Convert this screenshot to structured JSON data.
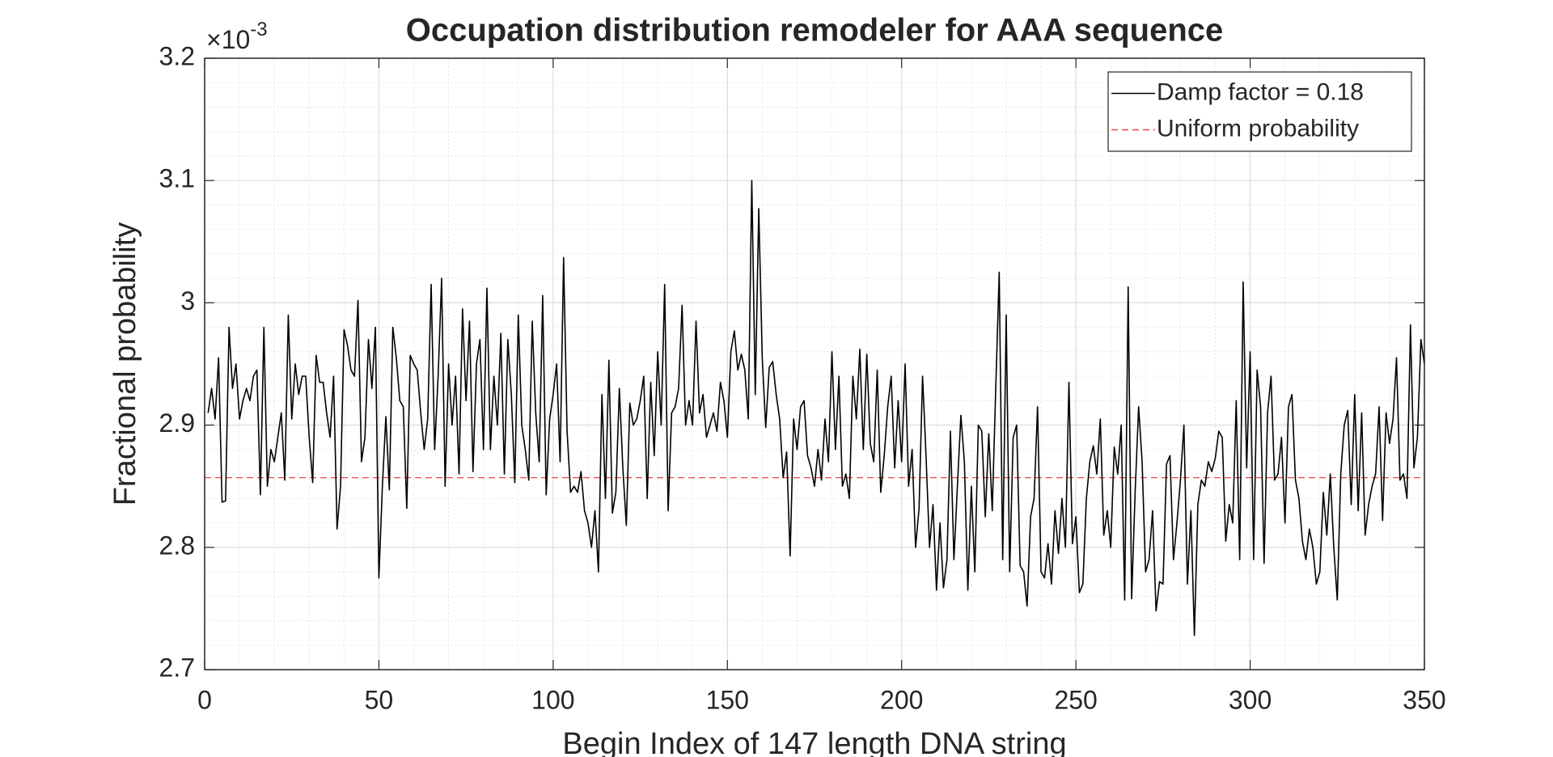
{
  "chart_data": {
    "type": "line",
    "title": "Occupation distribution remodeler for AAA sequence",
    "xlabel": "Begin Index of 147 length DNA string",
    "ylabel": "Fractional probability",
    "y_scale_base": "×10",
    "y_scale_power": "-3",
    "xlim": [
      0,
      350
    ],
    "xticks": [
      0,
      50,
      100,
      150,
      200,
      250,
      300,
      350
    ],
    "ylim": [
      2.7,
      3.2
    ],
    "yticks": [
      2.7,
      2.8,
      2.9,
      3,
      3.1,
      3.2
    ],
    "grid": true,
    "minor_grid": true,
    "legend": "northeast",
    "x": [
      1,
      2,
      3,
      4,
      5,
      6,
      7,
      8,
      9,
      10,
      11,
      12,
      13,
      14,
      15,
      16,
      17,
      18,
      19,
      20,
      21,
      22,
      23,
      24,
      25,
      26,
      27,
      28,
      29,
      30,
      31,
      32,
      33,
      34,
      35,
      36,
      37,
      38,
      39,
      40,
      41,
      42,
      43,
      44,
      45,
      46,
      47,
      48,
      49,
      50,
      51,
      52,
      53,
      54,
      55,
      56,
      57,
      58,
      59,
      60,
      61,
      62,
      63,
      64,
      65,
      66,
      67,
      68,
      69,
      70,
      71,
      72,
      73,
      74,
      75,
      76,
      77,
      78,
      79,
      80,
      81,
      82,
      83,
      84,
      85,
      86,
      87,
      88,
      89,
      90,
      91,
      92,
      93,
      94,
      95,
      96,
      97,
      98,
      99,
      100,
      101,
      102,
      103,
      104,
      105,
      106,
      107,
      108,
      109,
      110,
      111,
      112,
      113,
      114,
      115,
      116,
      117,
      118,
      119,
      120,
      121,
      122,
      123,
      124,
      125,
      126,
      127,
      128,
      129,
      130,
      131,
      132,
      133,
      134,
      135,
      136,
      137,
      138,
      139,
      140,
      141,
      142,
      143,
      144,
      145,
      146,
      147,
      148,
      149,
      150,
      151,
      152,
      153,
      154,
      155,
      156,
      157,
      158,
      159,
      160,
      161,
      162,
      163,
      164,
      165,
      166,
      167,
      168,
      169,
      170,
      171,
      172,
      173,
      174,
      175,
      176,
      177,
      178,
      179,
      180,
      181,
      182,
      183,
      184,
      185,
      186,
      187,
      188,
      189,
      190,
      191,
      192,
      193,
      194,
      195,
      196,
      197,
      198,
      199,
      200,
      201,
      202,
      203,
      204,
      205,
      206,
      207,
      208,
      209,
      210,
      211,
      212,
      213,
      214,
      215,
      216,
      217,
      218,
      219,
      220,
      221,
      222,
      223,
      224,
      225,
      226,
      227,
      228,
      229,
      230,
      231,
      232,
      233,
      234,
      235,
      236,
      237,
      238,
      239,
      240,
      241,
      242,
      243,
      244,
      245,
      246,
      247,
      248,
      249,
      250,
      251,
      252,
      253,
      254,
      255,
      256,
      257,
      258,
      259,
      260,
      261,
      262,
      263,
      264,
      265,
      266,
      267,
      268,
      269,
      270,
      271,
      272,
      273,
      274,
      275,
      276,
      277,
      278,
      279,
      280,
      281,
      282,
      283,
      284,
      285,
      286,
      287,
      288,
      289,
      290,
      291,
      292,
      293,
      294,
      295,
      296,
      297,
      298,
      299,
      300,
      301,
      302,
      303,
      304,
      305,
      306,
      307,
      308,
      309,
      310,
      311,
      312,
      313,
      314,
      315,
      316,
      317,
      318,
      319,
      320,
      321,
      322,
      323,
      324,
      325,
      326,
      327,
      328,
      329,
      330,
      331,
      332,
      333,
      334,
      335,
      336,
      337,
      338,
      339,
      340,
      341,
      342,
      343,
      344,
      345,
      346,
      347,
      348,
      349,
      350
    ],
    "series": [
      {
        "name": "Damp factor = 0.18",
        "color": "#000000",
        "values": [
          2.91,
          2.93,
          2.905,
          2.955,
          2.837,
          2.838,
          2.98,
          2.93,
          2.95,
          2.905,
          2.92,
          2.93,
          2.92,
          2.94,
          2.945,
          2.843,
          2.98,
          2.85,
          2.88,
          2.87,
          2.89,
          2.91,
          2.855,
          2.99,
          2.905,
          2.95,
          2.925,
          2.94,
          2.94,
          2.89,
          2.853,
          2.957,
          2.935,
          2.935,
          2.91,
          2.89,
          2.94,
          2.815,
          2.85,
          2.978,
          2.965,
          2.945,
          2.94,
          3.002,
          2.87,
          2.89,
          2.97,
          2.93,
          2.98,
          2.775,
          2.85,
          2.907,
          2.847,
          2.98,
          2.955,
          2.92,
          2.915,
          2.832,
          2.957,
          2.95,
          2.945,
          2.91,
          2.88,
          2.905,
          3.015,
          2.88,
          2.94,
          3.02,
          2.85,
          2.95,
          2.9,
          2.94,
          2.86,
          2.995,
          2.92,
          2.985,
          2.862,
          2.95,
          2.97,
          2.88,
          3.012,
          2.88,
          2.94,
          2.9,
          2.975,
          2.86,
          2.97,
          2.925,
          2.853,
          2.99,
          2.9,
          2.88,
          2.855,
          2.985,
          2.91,
          2.87,
          3.006,
          2.843,
          2.905,
          2.925,
          2.95,
          2.87,
          3.037,
          2.895,
          2.845,
          2.85,
          2.845,
          2.862,
          2.83,
          2.82,
          2.8,
          2.83,
          2.78,
          2.925,
          2.84,
          2.953,
          2.828,
          2.845,
          2.93,
          2.865,
          2.818,
          2.918,
          2.9,
          2.905,
          2.92,
          2.94,
          2.84,
          2.935,
          2.875,
          2.96,
          2.9,
          3.015,
          2.83,
          2.91,
          2.915,
          2.93,
          2.998,
          2.9,
          2.92,
          2.9,
          2.985,
          2.91,
          2.925,
          2.89,
          2.9,
          2.91,
          2.895,
          2.935,
          2.92,
          2.89,
          2.96,
          2.977,
          2.945,
          2.958,
          2.945,
          2.905,
          3.1,
          2.925,
          3.077,
          2.955,
          2.898,
          2.947,
          2.952,
          2.925,
          2.905,
          2.857,
          2.878,
          2.793,
          2.905,
          2.88,
          2.915,
          2.92,
          2.875,
          2.865,
          2.85,
          2.88,
          2.855,
          2.905,
          2.87,
          2.96,
          2.88,
          2.94,
          2.85,
          2.86,
          2.84,
          2.94,
          2.905,
          2.962,
          2.88,
          2.958,
          2.885,
          2.87,
          2.945,
          2.845,
          2.875,
          2.915,
          2.94,
          2.865,
          2.92,
          2.87,
          2.95,
          2.85,
          2.88,
          2.8,
          2.832,
          2.94,
          2.875,
          2.8,
          2.835,
          2.765,
          2.82,
          2.767,
          2.79,
          2.895,
          2.79,
          2.85,
          2.908,
          2.87,
          2.765,
          2.85,
          2.78,
          2.9,
          2.895,
          2.825,
          2.893,
          2.83,
          2.93,
          3.025,
          2.79,
          2.99,
          2.78,
          2.89,
          2.9,
          2.785,
          2.78,
          2.752,
          2.825,
          2.84,
          2.915,
          2.78,
          2.775,
          2.803,
          2.77,
          2.83,
          2.795,
          2.84,
          2.8,
          2.935,
          2.803,
          2.825,
          2.763,
          2.77,
          2.84,
          2.87,
          2.883,
          2.86,
          2.905,
          2.81,
          2.83,
          2.8,
          2.882,
          2.86,
          2.9,
          2.757,
          3.013,
          2.758,
          2.845,
          2.915,
          2.87,
          2.78,
          2.79,
          2.83,
          2.748,
          2.772,
          2.77,
          2.868,
          2.875,
          2.79,
          2.82,
          2.855,
          2.9,
          2.77,
          2.83,
          2.728,
          2.835,
          2.855,
          2.85,
          2.87,
          2.862,
          2.873,
          2.895,
          2.89,
          2.805,
          2.835,
          2.82,
          2.92,
          2.79,
          3.017,
          2.865,
          2.96,
          2.79,
          2.945,
          2.915,
          2.787,
          2.91,
          2.94,
          2.855,
          2.86,
          2.89,
          2.82,
          2.915,
          2.925,
          2.855,
          2.84,
          2.805,
          2.79,
          2.815,
          2.8,
          2.77,
          2.78,
          2.845,
          2.81,
          2.86,
          2.8,
          2.757,
          2.86,
          2.9,
          2.912,
          2.835,
          2.925,
          2.83,
          2.91,
          2.81,
          2.835,
          2.85,
          2.86,
          2.915,
          2.822,
          2.91,
          2.885,
          2.905,
          2.955,
          2.855,
          2.86,
          2.84,
          2.982,
          2.865,
          2.89,
          2.97,
          2.95
        ]
      }
    ],
    "reference_line": {
      "name": "Uniform probability",
      "color": "#e8474a",
      "dashed": true,
      "value": 2.857
    }
  }
}
